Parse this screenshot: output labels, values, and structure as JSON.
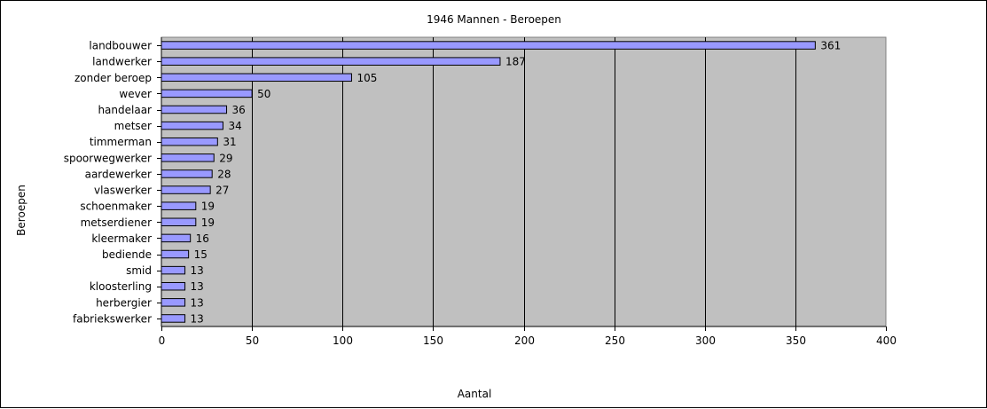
{
  "chart_data": {
    "type": "bar",
    "orientation": "horizontal",
    "title": "1946 Mannen - Beroepen",
    "xlabel": "Aantal",
    "ylabel": "Beroepen",
    "xlim": [
      0,
      400
    ],
    "xticks": [
      0,
      50,
      100,
      150,
      200,
      250,
      300,
      350,
      400
    ],
    "grid": "vertical",
    "legend": "none",
    "categories": [
      "landbouwer",
      "landwerker",
      "zonder beroep",
      "wever",
      "handelaar",
      "metser",
      "timmerman",
      "spoorwegwerker",
      "aardewerker",
      "vlaswerker",
      "schoenmaker",
      "metserdiener",
      "kleermaker",
      "bediende",
      "smid",
      "kloosterling",
      "herbergier",
      "fabriekswerker"
    ],
    "values": [
      361,
      187,
      105,
      50,
      36,
      34,
      31,
      29,
      28,
      27,
      19,
      19,
      16,
      15,
      13,
      13,
      13,
      13
    ],
    "colors": {
      "bar_fill": "#9999ff",
      "bar_stroke": "#000000",
      "plot_bg": "#c0c0c0",
      "grid": "#000000"
    }
  }
}
